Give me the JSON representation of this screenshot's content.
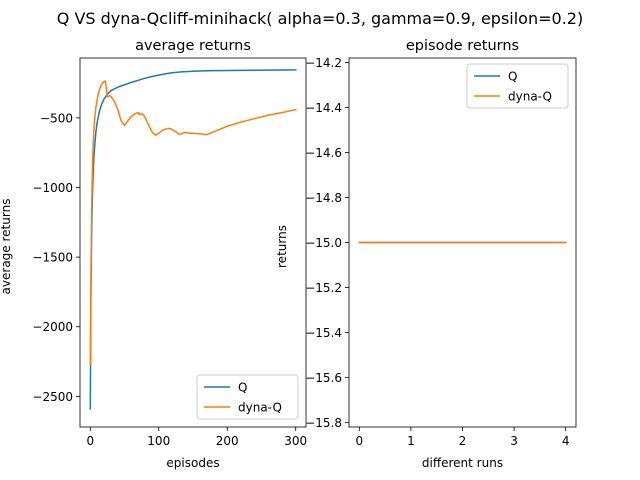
{
  "suptitle": "Q VS dyna-Qcliff-minihack( alpha=0.3, gamma=0.9, epsilon=0.2)",
  "colors": {
    "Q": "#1f77b4",
    "dyna-Q": "#ff7f0e"
  },
  "chart_data": [
    {
      "type": "line",
      "title": "average returns",
      "xlabel": "episodes",
      "ylabel": "average returns",
      "xlim": [
        -15,
        315
      ],
      "ylim": [
        -2720,
        -70
      ],
      "xticks": [
        0,
        100,
        200,
        300
      ],
      "yticks": [
        -2500,
        -2000,
        -1500,
        -1000,
        -500
      ],
      "grid": false,
      "legend_position": "lower-right",
      "series": [
        {
          "name": "Q",
          "x": [
            0,
            1,
            2,
            3,
            4,
            5,
            6,
            8,
            10,
            13,
            16,
            20,
            25,
            30,
            40,
            50,
            60,
            70,
            80,
            90,
            100,
            110,
            120,
            130,
            140,
            150,
            160,
            170,
            180,
            190,
            200,
            220,
            240,
            260,
            280,
            300
          ],
          "y": [
            -2590,
            -1750,
            -1330,
            -1080,
            -920,
            -810,
            -730,
            -610,
            -535,
            -460,
            -410,
            -365,
            -330,
            -305,
            -280,
            -262,
            -245,
            -230,
            -215,
            -203,
            -193,
            -183,
            -176,
            -171,
            -168,
            -165,
            -163,
            -162,
            -161,
            -161,
            -160,
            -159,
            -158,
            -157,
            -156,
            -155
          ]
        },
        {
          "name": "dyna-Q",
          "x": [
            0,
            1,
            2,
            3,
            4,
            5,
            6,
            8,
            10,
            12,
            14,
            16,
            18,
            20,
            22,
            25,
            28,
            30,
            33,
            36,
            40,
            45,
            50,
            55,
            60,
            65,
            70,
            72,
            75,
            78,
            80,
            85,
            90,
            95,
            100,
            105,
            110,
            115,
            120,
            125,
            130,
            135,
            140,
            145,
            150,
            160,
            170,
            180,
            190,
            200,
            210,
            220,
            240,
            260,
            280,
            300
          ],
          "y": [
            -2270,
            -1600,
            -1150,
            -900,
            -720,
            -610,
            -530,
            -430,
            -370,
            -320,
            -290,
            -265,
            -250,
            -240,
            -235,
            -350,
            -340,
            -345,
            -365,
            -390,
            -440,
            -520,
            -555,
            -520,
            -490,
            -470,
            -462,
            -478,
            -470,
            -480,
            -498,
            -550,
            -600,
            -625,
            -610,
            -590,
            -580,
            -575,
            -585,
            -600,
            -620,
            -610,
            -605,
            -610,
            -610,
            -615,
            -620,
            -600,
            -580,
            -560,
            -545,
            -530,
            -505,
            -480,
            -462,
            -440
          ]
        }
      ]
    },
    {
      "type": "line",
      "title": "episode returns",
      "xlabel": "different runs",
      "ylabel": "returns",
      "xlim": [
        -0.2,
        4.2
      ],
      "ylim": [
        -15.82,
        -14.18
      ],
      "xticks": [
        0,
        1,
        2,
        3,
        4
      ],
      "yticks": [
        -14.2,
        -14.4,
        -14.6,
        -14.8,
        -15.0,
        -15.2,
        -15.4,
        -15.6,
        -15.8
      ],
      "ytick_labels": [
        "−14.2",
        "−14.4",
        "−14.6",
        "−14.8",
        "−15.0",
        "−15.2",
        "−15.4",
        "−15.6",
        "−15.8"
      ],
      "grid": false,
      "legend_position": "upper-right",
      "series": [
        {
          "name": "Q",
          "x": [
            0,
            1,
            2,
            3,
            4
          ],
          "y": [
            -15,
            -15,
            -15,
            -15,
            -15
          ]
        },
        {
          "name": "dyna-Q",
          "x": [
            0,
            1,
            2,
            3,
            4
          ],
          "y": [
            -15,
            -15,
            -15,
            -15,
            -15
          ]
        }
      ]
    }
  ]
}
